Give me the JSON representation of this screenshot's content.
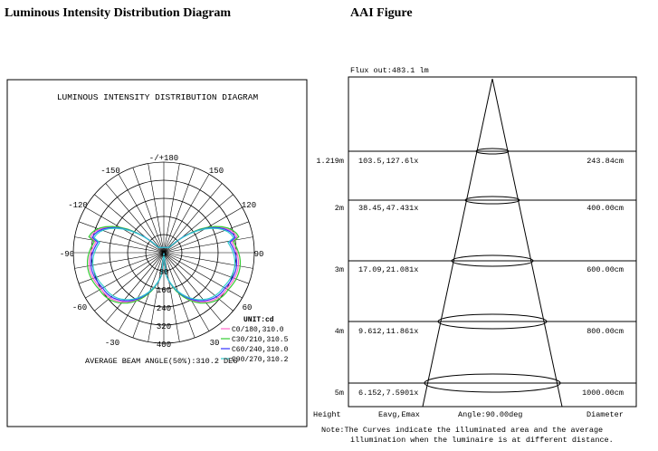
{
  "headers": {
    "left": "Luminous Intensity Distribution Diagram",
    "right": "AAI Figure"
  },
  "polar": {
    "title": "LUMINOUS INTENSITY DISTRIBUTION DIAGRAM",
    "angle_labels": [
      "-/+180",
      "150",
      "120",
      "90",
      "60",
      "30",
      "-150",
      "-120",
      "-90",
      "-60",
      "-30"
    ],
    "radial_labels": [
      "0",
      "80",
      "160",
      "240",
      "320",
      "400"
    ],
    "unit": "UNIT:cd",
    "legend": [
      {
        "label": "C0/180,310.0",
        "color": "#ff66cc"
      },
      {
        "label": "C30/210,310.5",
        "color": "#33cc33"
      },
      {
        "label": "C60/240,310.0",
        "color": "#3333ff"
      },
      {
        "label": "C90/270,310.2",
        "color": "#33cccc"
      }
    ],
    "beam_angle": "AVERAGE BEAM ANGLE(50%):310.2 DEG"
  },
  "aai": {
    "flux": "Flux out:483.1 lm",
    "rows": [
      {
        "height": "1.219m",
        "illum": "103.5,127.6lx",
        "diameter": "243.84cm"
      },
      {
        "height": "2m",
        "illum": "38.45,47.431x",
        "diameter": "400.00cm"
      },
      {
        "height": "3m",
        "illum": "17.09,21.081x",
        "diameter": "600.00cm"
      },
      {
        "height": "4m",
        "illum": "9.612,11.861x",
        "diameter": "800.00cm"
      },
      {
        "height": "5m",
        "illum": "6.152,7.5901x",
        "diameter": "1000.00cm"
      }
    ],
    "footer": {
      "height": "Height",
      "eavg": "Eavg,Emax",
      "angle": "Angle:90.00deg",
      "diameter": "Diameter"
    },
    "note_line1": "Note:The Curves indicate the illuminated area and the average",
    "note_line2": "illumination when the luminaire is at different distance."
  }
}
